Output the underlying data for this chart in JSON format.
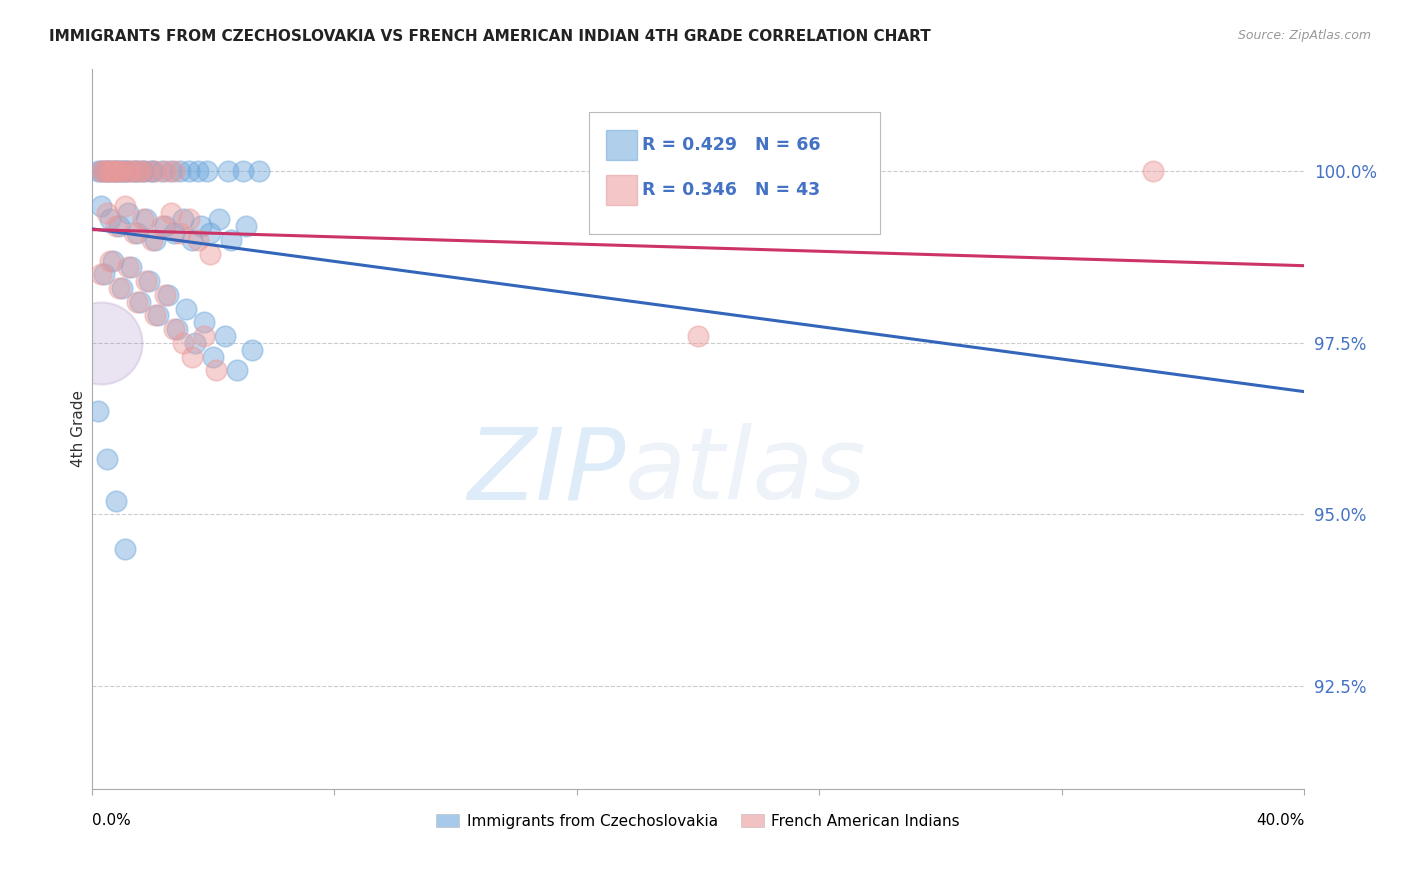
{
  "title": "IMMIGRANTS FROM CZECHOSLOVAKIA VS FRENCH AMERICAN INDIAN 4TH GRADE CORRELATION CHART",
  "source": "Source: ZipAtlas.com",
  "ylabel": "4th Grade",
  "x_range": [
    0.0,
    40.0
  ],
  "y_range": [
    91.0,
    101.5
  ],
  "ytick_vals": [
    92.5,
    95.0,
    97.5,
    100.0
  ],
  "blue_color": "#6fa8dc",
  "pink_color": "#ea9999",
  "blue_line_color": "#3366bb",
  "pink_line_color": "#cc3366",
  "purple_blob_x": 0.3,
  "purple_blob_y": 97.5,
  "purple_blob_s": 3500,
  "watermark_zip": "ZIP",
  "watermark_atlas": "atlas",
  "legend_label_blue": "Immigrants from Czechoslovakia",
  "legend_label_pink": "French American Indians",
  "blue_scatter_x": [
    0.5,
    0.8,
    0.6,
    1.0,
    0.3,
    0.9,
    1.2,
    1.5,
    0.4,
    0.7,
    1.1,
    1.4,
    1.7,
    2.0,
    0.2,
    0.5,
    0.8,
    1.1,
    1.4,
    1.7,
    2.0,
    2.3,
    2.6,
    2.9,
    3.2,
    3.5,
    3.8,
    4.5,
    5.0,
    5.5,
    0.3,
    0.6,
    0.9,
    1.2,
    1.5,
    1.8,
    2.1,
    2.4,
    2.7,
    3.0,
    3.3,
    3.6,
    3.9,
    4.2,
    4.6,
    5.1,
    0.4,
    0.7,
    1.0,
    1.3,
    1.6,
    1.9,
    2.2,
    2.5,
    2.8,
    3.1,
    3.4,
    3.7,
    4.0,
    4.4,
    4.8,
    5.3,
    0.2,
    0.5,
    0.8,
    1.1
  ],
  "blue_scatter_y": [
    100.0,
    100.0,
    100.0,
    100.0,
    100.0,
    100.0,
    100.0,
    100.0,
    100.0,
    100.0,
    100.0,
    100.0,
    100.0,
    100.0,
    100.0,
    100.0,
    100.0,
    100.0,
    100.0,
    100.0,
    100.0,
    100.0,
    100.0,
    100.0,
    100.0,
    100.0,
    100.0,
    100.0,
    100.0,
    100.0,
    99.5,
    99.3,
    99.2,
    99.4,
    99.1,
    99.3,
    99.0,
    99.2,
    99.1,
    99.3,
    99.0,
    99.2,
    99.1,
    99.3,
    99.0,
    99.2,
    98.5,
    98.7,
    98.3,
    98.6,
    98.1,
    98.4,
    97.9,
    98.2,
    97.7,
    98.0,
    97.5,
    97.8,
    97.3,
    97.6,
    97.1,
    97.4,
    96.5,
    95.8,
    95.2,
    94.5
  ],
  "pink_scatter_x": [
    0.4,
    0.7,
    0.5,
    1.0,
    0.8,
    1.3,
    1.6,
    0.3,
    0.6,
    0.9,
    1.2,
    1.5,
    1.8,
    2.1,
    2.4,
    2.7,
    0.5,
    0.8,
    1.1,
    1.4,
    1.7,
    2.0,
    2.3,
    2.6,
    2.9,
    3.2,
    3.5,
    3.9,
    0.3,
    0.6,
    0.9,
    1.2,
    1.5,
    1.8,
    2.1,
    2.4,
    2.7,
    3.0,
    3.3,
    3.7,
    4.1,
    20.0,
    35.0
  ],
  "pink_scatter_y": [
    100.0,
    100.0,
    100.0,
    100.0,
    100.0,
    100.0,
    100.0,
    100.0,
    100.0,
    100.0,
    100.0,
    100.0,
    100.0,
    100.0,
    100.0,
    100.0,
    99.4,
    99.2,
    99.5,
    99.1,
    99.3,
    99.0,
    99.2,
    99.4,
    99.1,
    99.3,
    99.0,
    98.8,
    98.5,
    98.7,
    98.3,
    98.6,
    98.1,
    98.4,
    97.9,
    98.2,
    97.7,
    97.5,
    97.3,
    97.6,
    97.1,
    97.6,
    100.0
  ]
}
